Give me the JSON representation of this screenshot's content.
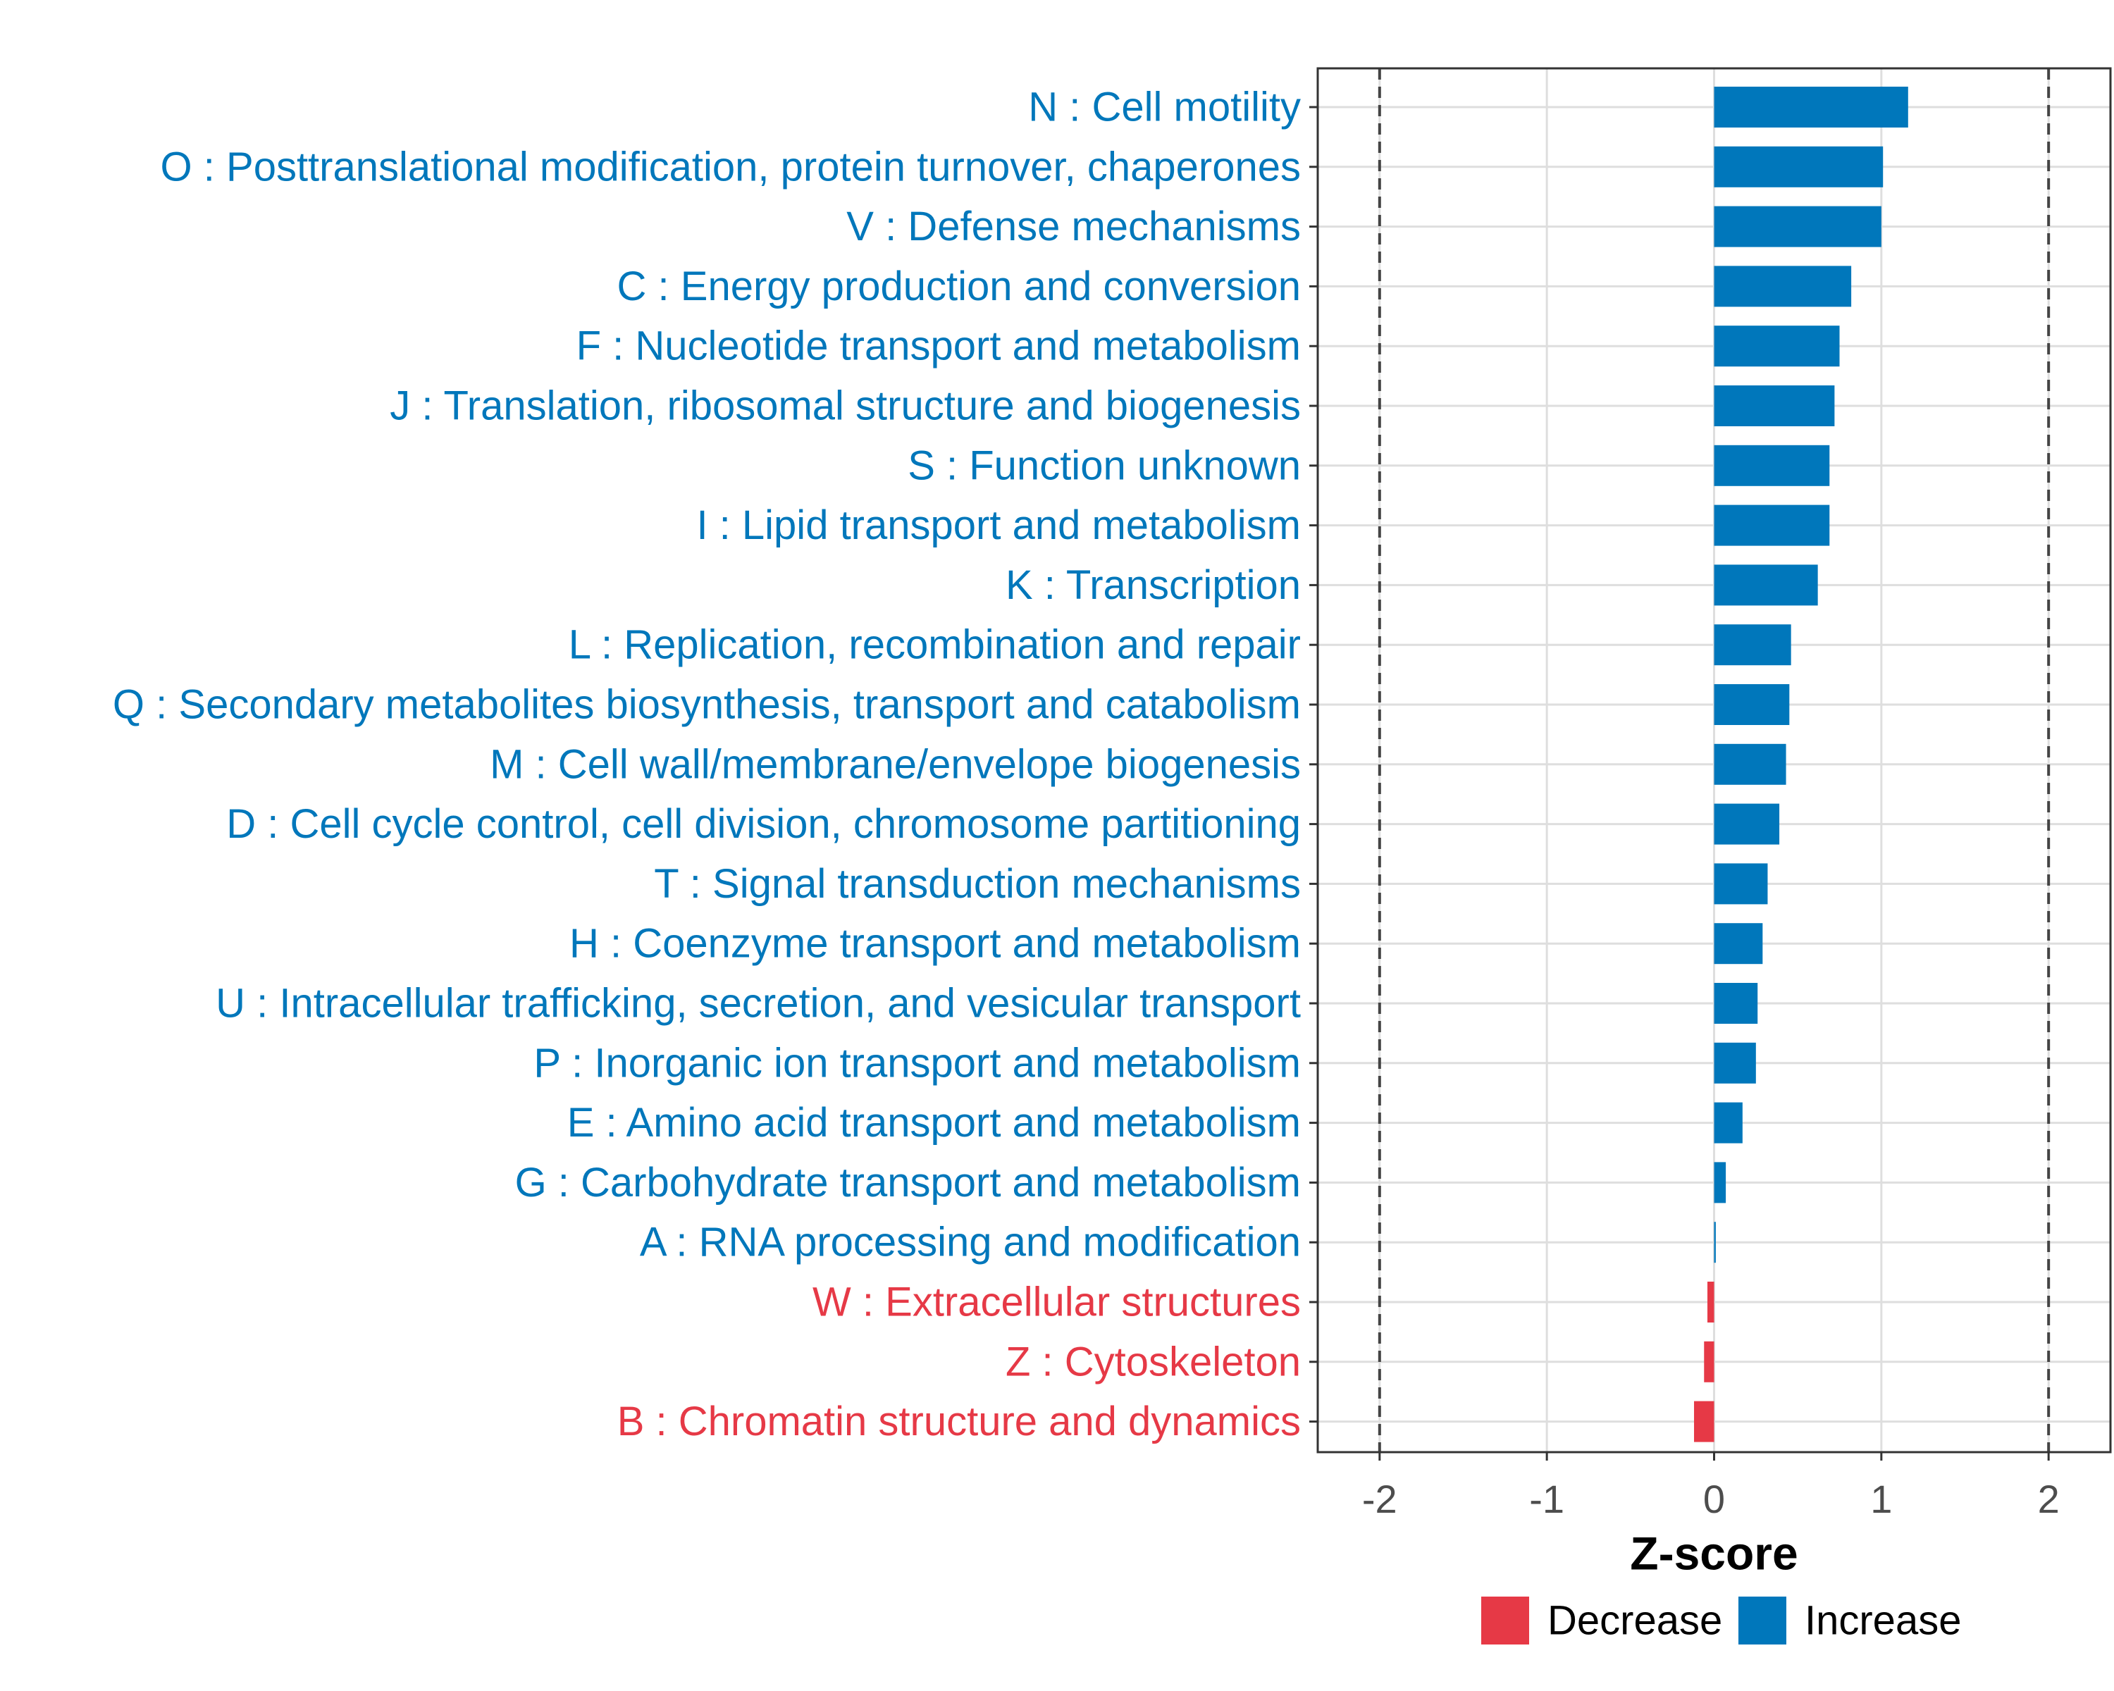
{
  "chart_data": {
    "type": "bar",
    "orientation": "horizontal",
    "title": "",
    "xlabel": "Z-score",
    "ylabel": "",
    "xlim": [
      -2.37,
      2.37
    ],
    "xticks": [
      -2,
      -1,
      0,
      1,
      2
    ],
    "xtick_labels": [
      "-2",
      "-1",
      "0",
      "1",
      "2"
    ],
    "reference_lines": [
      -2,
      2
    ],
    "grid": true,
    "legend_position": "bottom",
    "categories": [
      "N : Cell motility",
      "O : Posttranslational modification, protein turnover, chaperones",
      "V : Defense mechanisms",
      "C : Energy production and conversion",
      "F : Nucleotide transport and metabolism",
      "J : Translation, ribosomal structure and biogenesis",
      "S : Function unknown",
      "I : Lipid transport and metabolism",
      "K : Transcription",
      "L : Replication, recombination and repair",
      "Q : Secondary metabolites biosynthesis, transport and catabolism",
      "M : Cell wall/membrane/envelope biogenesis",
      "D : Cell cycle control, cell division, chromosome partitioning",
      "T : Signal transduction mechanisms",
      "H : Coenzyme transport and metabolism",
      "U : Intracellular trafficking, secretion, and vesicular transport",
      "P : Inorganic ion transport and metabolism",
      "E : Amino acid transport and metabolism",
      "G : Carbohydrate transport and metabolism",
      "A : RNA processing and modification",
      "W : Extracellular structures",
      "Z : Cytoskeleton",
      "B : Chromatin structure and dynamics"
    ],
    "values": [
      1.16,
      1.01,
      1.0,
      0.82,
      0.75,
      0.72,
      0.69,
      0.69,
      0.62,
      0.46,
      0.45,
      0.43,
      0.39,
      0.32,
      0.29,
      0.26,
      0.25,
      0.17,
      0.07,
      0.01,
      -0.04,
      -0.06,
      -0.12
    ],
    "direction": [
      "Increase",
      "Increase",
      "Increase",
      "Increase",
      "Increase",
      "Increase",
      "Increase",
      "Increase",
      "Increase",
      "Increase",
      "Increase",
      "Increase",
      "Increase",
      "Increase",
      "Increase",
      "Increase",
      "Increase",
      "Increase",
      "Increase",
      "Increase",
      "Decrease",
      "Decrease",
      "Decrease"
    ],
    "legend": [
      {
        "label": "Decrease",
        "color": "#e63946"
      },
      {
        "label": "Increase",
        "color": "#0077bb"
      }
    ]
  },
  "colors": {
    "increase": "#0077bb",
    "decrease": "#e63946",
    "grid": "#dedede",
    "reference_line": "#444444",
    "panel_border": "#333333"
  }
}
